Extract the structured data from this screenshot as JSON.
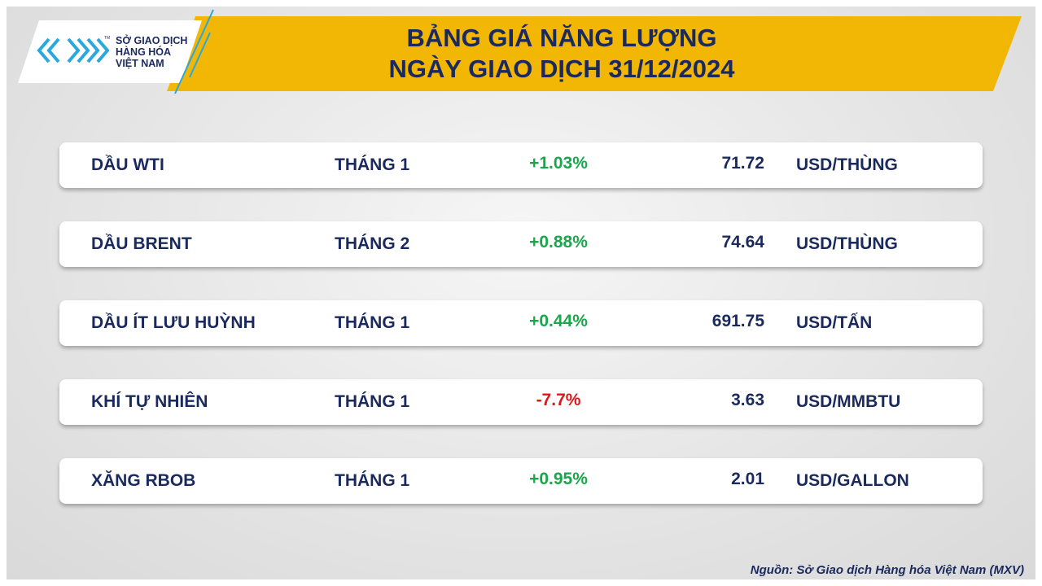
{
  "logo": {
    "lines": [
      "SỞ GIAO DỊCH",
      "HÀNG HÓA",
      "VIỆT NAM"
    ],
    "mark": "TM"
  },
  "header": {
    "title": [
      "BẢNG GIÁ NĂNG LƯỢNG",
      "NGÀY GIAO DỊCH 31/12/2024"
    ]
  },
  "table": {
    "rows": [
      [
        "DẦU WTI",
        "THÁNG 1",
        "+1.03%",
        "71.72",
        "USD/THÙNG"
      ],
      [
        "DẦU BRENT",
        "THÁNG 2",
        "+0.88%",
        "74.64",
        "USD/THÙNG"
      ],
      [
        "DẦU ÍT LƯU HUỲNH",
        "THÁNG 1",
        "+0.44%",
        "691.75",
        "USD/TẤN"
      ],
      [
        "KHÍ TỰ NHIÊN",
        "THÁNG 1",
        "-7.7%",
        "3.63",
        "USD/MMBTU"
      ],
      [
        "XĂNG RBOB",
        "THÁNG 1",
        "+0.95%",
        "2.01",
        "USD/GALLON"
      ]
    ]
  },
  "footer": {
    "source": "Nguồn: Sở Giao dịch Hàng hóa Việt Nam (MXV)"
  }
}
